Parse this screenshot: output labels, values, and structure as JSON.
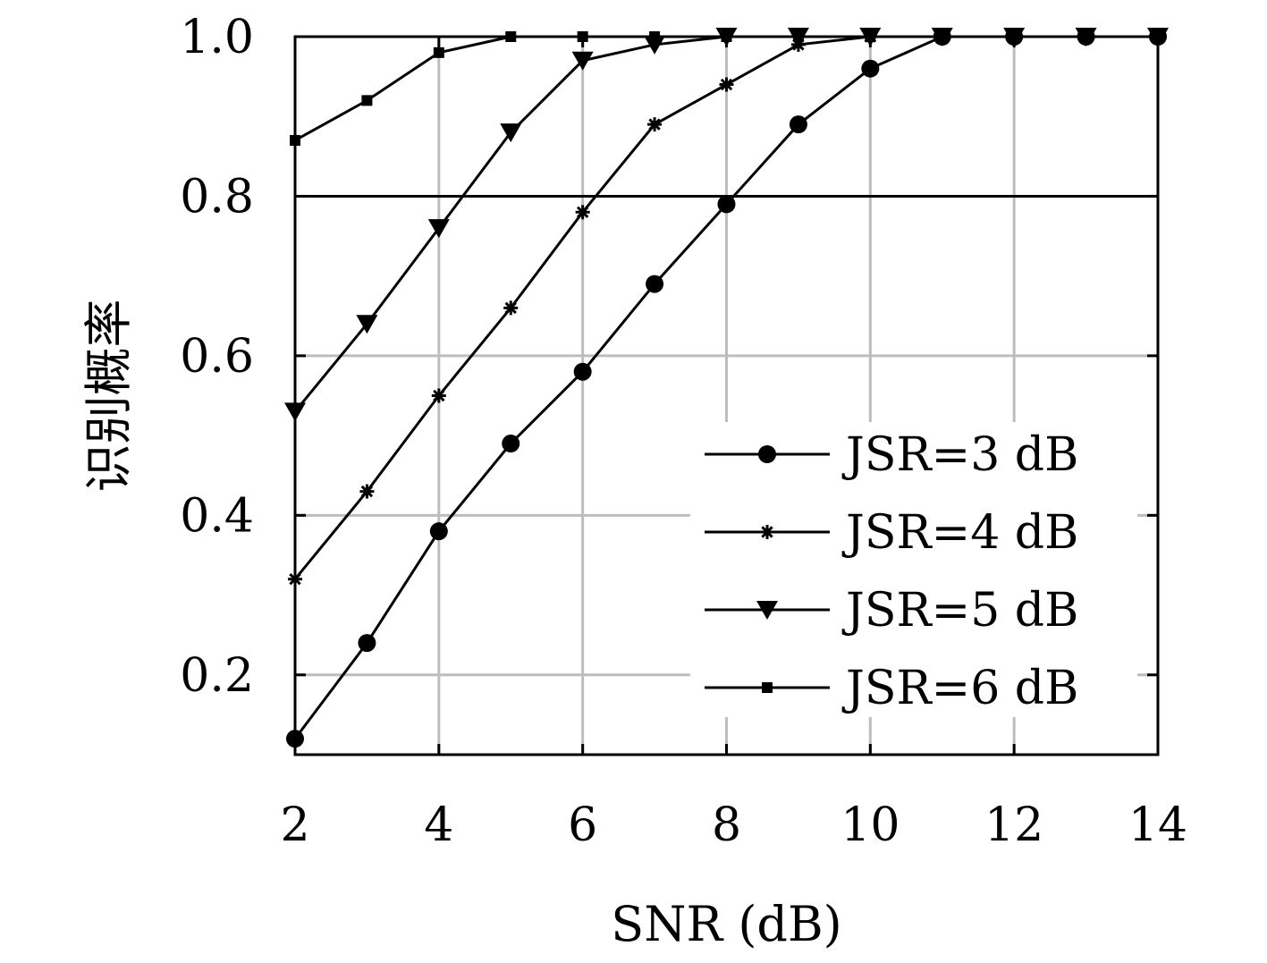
{
  "chart_data": {
    "type": "line",
    "title": "",
    "xlabel": "SNR (dB)",
    "ylabel": "识别概率",
    "xlim": [
      2,
      14
    ],
    "ylim": [
      0.1,
      1.0
    ],
    "xticks": [
      2,
      4,
      6,
      8,
      10,
      12,
      14
    ],
    "xtick_labels": [
      "2",
      "4",
      "6",
      "8",
      "10",
      "12",
      "14"
    ],
    "yticks": [
      0.2,
      0.4,
      0.6,
      0.8,
      1.0
    ],
    "ytick_labels": [
      "0.2",
      "0.4",
      "0.6",
      "0.8",
      "1.0"
    ],
    "grid": true,
    "legend_position": "bottom-right",
    "reference_line": 0.8,
    "x": [
      2,
      3,
      4,
      5,
      6,
      7,
      8,
      9,
      10,
      11,
      12,
      13,
      14
    ],
    "series": [
      {
        "name": "JSR=3 dB",
        "marker": "circle",
        "values": [
          0.12,
          0.24,
          0.38,
          0.49,
          0.58,
          0.69,
          0.79,
          0.89,
          0.96,
          1.0,
          1.0,
          1.0,
          1.0
        ]
      },
      {
        "name": "JSR=4 dB",
        "marker": "star",
        "values": [
          0.32,
          0.43,
          0.55,
          0.66,
          0.78,
          0.89,
          0.94,
          0.99,
          1.0,
          1.0,
          1.0,
          1.0,
          1.0
        ]
      },
      {
        "name": "JSR=5 dB",
        "marker": "triangle-down",
        "values": [
          0.53,
          0.64,
          0.76,
          0.88,
          0.97,
          0.99,
          1.0,
          1.0,
          1.0,
          1.0,
          1.0,
          1.0,
          1.0
        ]
      },
      {
        "name": "JSR=6 dB",
        "marker": "square",
        "values": [
          0.87,
          0.92,
          0.98,
          1.0,
          1.0,
          1.0,
          1.0,
          1.0,
          1.0,
          1.0,
          1.0,
          1.0,
          1.0
        ]
      }
    ]
  }
}
